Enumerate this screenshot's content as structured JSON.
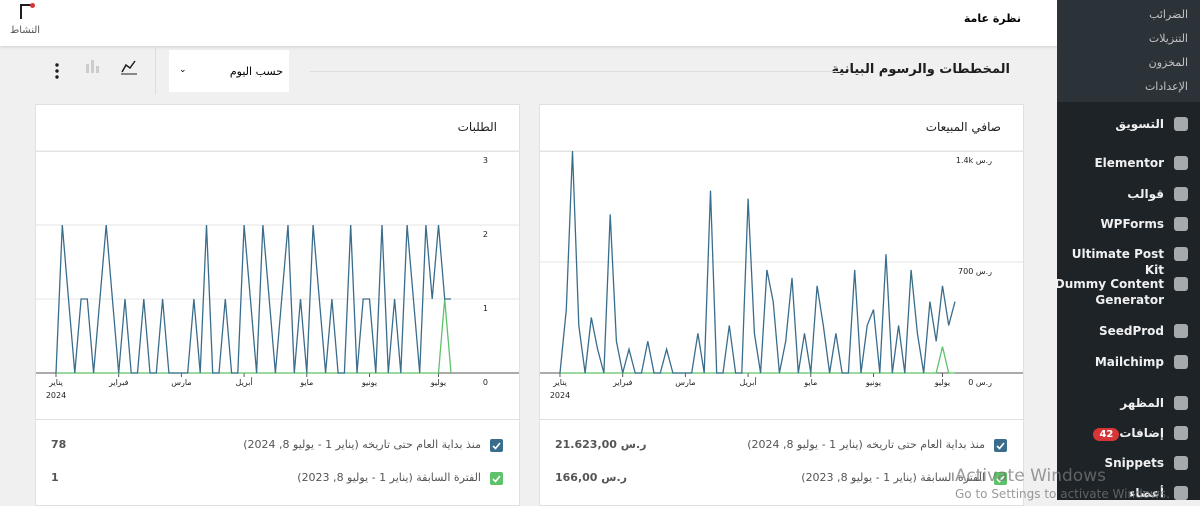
{
  "topbar": {
    "title": "نظرة عامة",
    "activity": "النشاط"
  },
  "section": {
    "title": "المخططات والرسوم البيانية",
    "interval": "حسب اليوم"
  },
  "sidebar": {
    "submenu": [
      "الضرائب",
      "التنزيلات",
      "المخزون",
      "الإعدادات"
    ],
    "menu": [
      {
        "label": "التسويق"
      },
      {
        "label": "Elementor"
      },
      {
        "label": "قوالب"
      },
      {
        "label": "WPForms"
      },
      {
        "label": "Ultimate Post Kit"
      },
      {
        "label": "Dummy Content Generator"
      },
      {
        "label": "SeedProd"
      },
      {
        "label": "Mailchimp"
      },
      {
        "label": "المظهر"
      },
      {
        "label": "إضافات",
        "badge": "42"
      },
      {
        "label": "Snippets"
      },
      {
        "label": "أعضاء"
      }
    ]
  },
  "chart_data": [
    {
      "type": "line",
      "title": "صافي المبيعات",
      "categories": [
        "يناير",
        null,
        null,
        null,
        null,
        null,
        null,
        null,
        null,
        null,
        "فبراير",
        null,
        null,
        null,
        null,
        null,
        null,
        null,
        null,
        null,
        "مارس",
        null,
        null,
        null,
        null,
        null,
        null,
        null,
        null,
        null,
        "أبريل",
        null,
        null,
        null,
        null,
        null,
        null,
        null,
        null,
        null,
        "مايو",
        null,
        null,
        null,
        null,
        null,
        null,
        null,
        null,
        null,
        "يونيو",
        null,
        null,
        null,
        null,
        null,
        null,
        null,
        null,
        null,
        null,
        "يوليو",
        null,
        null
      ],
      "category_year": "2024",
      "ylim": [
        0,
        1400
      ],
      "yticks": [
        {
          "value": 0,
          "label": "0 ر.س"
        },
        {
          "value": 700,
          "label": "700 ر.س"
        },
        {
          "value": 1400,
          "label": "1.4k ر.س"
        }
      ],
      "series": [
        {
          "name": "منذ بداية العام حتى تاريخه (يناير 1 - يوليو 8, 2024)",
          "color": "#3a6d8c",
          "total": "21.623,00 ر.س",
          "values": [
            0,
            400,
            1400,
            300,
            0,
            350,
            150,
            0,
            1000,
            200,
            0,
            150,
            0,
            0,
            200,
            0,
            0,
            150,
            0,
            0,
            0,
            0,
            250,
            0,
            1150,
            0,
            0,
            300,
            0,
            0,
            1100,
            250,
            0,
            650,
            450,
            0,
            200,
            600,
            0,
            250,
            0,
            550,
            300,
            0,
            250,
            0,
            0,
            650,
            0,
            300,
            400,
            0,
            750,
            0,
            300,
            0,
            650,
            250,
            0,
            450,
            200,
            550,
            300,
            450
          ]
        },
        {
          "name": "الفترة السابقة (يناير 1 - يوليو 8, 2023)",
          "color": "#5ec26a",
          "total": "166,00 ر.س",
          "values": [
            0,
            0,
            0,
            0,
            0,
            0,
            0,
            0,
            0,
            0,
            0,
            0,
            0,
            0,
            0,
            0,
            0,
            0,
            0,
            0,
            0,
            0,
            0,
            0,
            0,
            0,
            0,
            0,
            0,
            0,
            0,
            0,
            0,
            0,
            0,
            0,
            0,
            0,
            0,
            0,
            0,
            0,
            0,
            0,
            0,
            0,
            0,
            0,
            0,
            0,
            0,
            0,
            0,
            0,
            0,
            0,
            0,
            0,
            0,
            0,
            0,
            166,
            0,
            0
          ]
        }
      ]
    },
    {
      "type": "line",
      "title": "الطلبات",
      "categories": [
        "يناير",
        null,
        null,
        null,
        null,
        null,
        null,
        null,
        null,
        null,
        "فبراير",
        null,
        null,
        null,
        null,
        null,
        null,
        null,
        null,
        null,
        "مارس",
        null,
        null,
        null,
        null,
        null,
        null,
        null,
        null,
        null,
        "أبريل",
        null,
        null,
        null,
        null,
        null,
        null,
        null,
        null,
        null,
        "مايو",
        null,
        null,
        null,
        null,
        null,
        null,
        null,
        null,
        null,
        "يونيو",
        null,
        null,
        null,
        null,
        null,
        null,
        null,
        null,
        null,
        null,
        "يوليو",
        null,
        null
      ],
      "category_year": "2024",
      "ylim": [
        0,
        3
      ],
      "yticks": [
        0,
        1,
        2,
        3
      ],
      "series": [
        {
          "name": "منذ بداية العام حتى تاريخه (يناير 1 - يوليو 8, 2024)",
          "color": "#3a6d8c",
          "total": "78",
          "values": [
            0,
            2,
            1,
            0,
            1,
            1,
            0,
            1,
            2,
            1,
            0,
            1,
            0,
            0,
            1,
            0,
            0,
            1,
            0,
            0,
            0,
            0,
            1,
            0,
            2,
            0,
            0,
            1,
            0,
            0,
            2,
            1,
            0,
            2,
            1,
            0,
            1,
            2,
            0,
            1,
            0,
            2,
            1,
            0,
            1,
            0,
            0,
            2,
            0,
            1,
            1,
            0,
            2,
            0,
            1,
            0,
            2,
            1,
            0,
            2,
            1,
            2,
            1,
            1
          ]
        },
        {
          "name": "الفترة السابقة (يناير 1 - يوليو 8, 2023)",
          "color": "#5ec26a",
          "total": "1",
          "values": [
            0,
            0,
            0,
            0,
            0,
            0,
            0,
            0,
            0,
            0,
            0,
            0,
            0,
            0,
            0,
            0,
            0,
            0,
            0,
            0,
            0,
            0,
            0,
            0,
            0,
            0,
            0,
            0,
            0,
            0,
            0,
            0,
            0,
            0,
            0,
            0,
            0,
            0,
            0,
            0,
            0,
            0,
            0,
            0,
            0,
            0,
            0,
            0,
            0,
            0,
            0,
            0,
            0,
            0,
            0,
            0,
            0,
            0,
            0,
            0,
            0,
            0,
            1,
            0
          ]
        }
      ]
    }
  ],
  "overlay": {
    "line1": "Activate Windows",
    "line2": "Go to Settings to activate Windows."
  }
}
